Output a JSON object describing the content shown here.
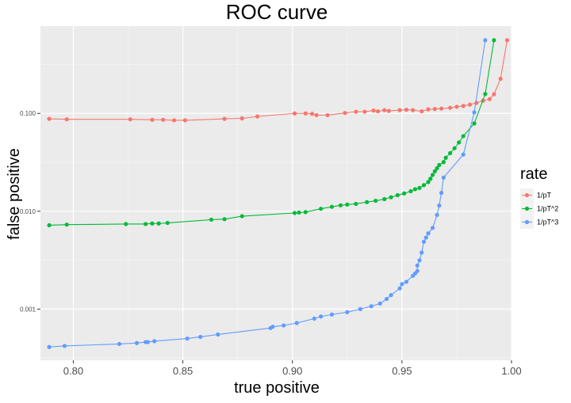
{
  "chart_data": {
    "type": "line",
    "title": "ROC curve",
    "xlabel": "true positive",
    "ylabel": "false positive",
    "x_scale": "linear",
    "y_scale": "log10",
    "xlim": [
      0.785,
      1.0
    ],
    "ylim": [
      0.0003,
      0.78
    ],
    "x_ticks": [
      0.8,
      0.85,
      0.9,
      0.95,
      1.0
    ],
    "x_tick_labels": [
      "0.80",
      "0.85",
      "0.90",
      "0.95",
      "1.00"
    ],
    "y_ticks": [
      0.001,
      0.01,
      0.1
    ],
    "y_tick_labels": [
      "0.001",
      "0.010",
      "0.100"
    ],
    "grid": true,
    "legend": {
      "title": "rate",
      "position": "right"
    },
    "series": [
      {
        "name": "1/pT",
        "color": "#F8766D",
        "points": [
          [
            0.789,
            0.088
          ],
          [
            0.797,
            0.087
          ],
          [
            0.826,
            0.087
          ],
          [
            0.836,
            0.086
          ],
          [
            0.841,
            0.086
          ],
          [
            0.846,
            0.085
          ],
          [
            0.851,
            0.085
          ],
          [
            0.869,
            0.088
          ],
          [
            0.877,
            0.089
          ],
          [
            0.884,
            0.093
          ],
          [
            0.901,
            0.1
          ],
          [
            0.906,
            0.1
          ],
          [
            0.909,
            0.099
          ],
          [
            0.911,
            0.096
          ],
          [
            0.916,
            0.096
          ],
          [
            0.924,
            0.101
          ],
          [
            0.929,
            0.104
          ],
          [
            0.933,
            0.104
          ],
          [
            0.937,
            0.107
          ],
          [
            0.939,
            0.105
          ],
          [
            0.942,
            0.108
          ],
          [
            0.944,
            0.106
          ],
          [
            0.949,
            0.108
          ],
          [
            0.952,
            0.109
          ],
          [
            0.955,
            0.108
          ],
          [
            0.959,
            0.105
          ],
          [
            0.962,
            0.11
          ],
          [
            0.965,
            0.111
          ],
          [
            0.968,
            0.112
          ],
          [
            0.972,
            0.114
          ],
          [
            0.975,
            0.117
          ],
          [
            0.978,
            0.119
          ],
          [
            0.981,
            0.123
          ],
          [
            0.984,
            0.128
          ],
          [
            0.987,
            0.135
          ],
          [
            0.99,
            0.14
          ],
          [
            0.992,
            0.157
          ],
          [
            0.995,
            0.226
          ],
          [
            0.998,
            0.56
          ]
        ]
      },
      {
        "name": "1/pT^2",
        "color": "#00BA38",
        "points": [
          [
            0.789,
            0.0072
          ],
          [
            0.797,
            0.0073
          ],
          [
            0.824,
            0.0074
          ],
          [
            0.833,
            0.0074
          ],
          [
            0.836,
            0.0075
          ],
          [
            0.839,
            0.0075
          ],
          [
            0.843,
            0.0076
          ],
          [
            0.863,
            0.0082
          ],
          [
            0.869,
            0.0083
          ],
          [
            0.877,
            0.0089
          ],
          [
            0.901,
            0.0096
          ],
          [
            0.903,
            0.0097
          ],
          [
            0.906,
            0.0098
          ],
          [
            0.913,
            0.0106
          ],
          [
            0.918,
            0.0111
          ],
          [
            0.922,
            0.0115
          ],
          [
            0.925,
            0.0117
          ],
          [
            0.929,
            0.0119
          ],
          [
            0.934,
            0.0124
          ],
          [
            0.938,
            0.0128
          ],
          [
            0.942,
            0.0133
          ],
          [
            0.945,
            0.0139
          ],
          [
            0.948,
            0.0146
          ],
          [
            0.951,
            0.0152
          ],
          [
            0.954,
            0.016
          ],
          [
            0.956,
            0.0168
          ],
          [
            0.958,
            0.0173
          ],
          [
            0.96,
            0.0185
          ],
          [
            0.962,
            0.0199
          ],
          [
            0.963,
            0.0215
          ],
          [
            0.964,
            0.0235
          ],
          [
            0.965,
            0.0256
          ],
          [
            0.966,
            0.0275
          ],
          [
            0.967,
            0.0297
          ],
          [
            0.969,
            0.0318
          ],
          [
            0.97,
            0.0352
          ],
          [
            0.972,
            0.0393
          ],
          [
            0.974,
            0.0441
          ],
          [
            0.976,
            0.0505
          ],
          [
            0.978,
            0.0586
          ],
          [
            0.983,
            0.079
          ],
          [
            0.988,
            0.158
          ],
          [
            0.992,
            0.56
          ]
        ]
      },
      {
        "name": "1/pT^3",
        "color": "#619CFF",
        "points": [
          [
            0.789,
            0.00041
          ],
          [
            0.796,
            0.00042
          ],
          [
            0.821,
            0.00044
          ],
          [
            0.829,
            0.00045
          ],
          [
            0.833,
            0.00046
          ],
          [
            0.834,
            0.00046
          ],
          [
            0.837,
            0.00047
          ],
          [
            0.852,
            0.0005
          ],
          [
            0.858,
            0.00052
          ],
          [
            0.866,
            0.00055
          ],
          [
            0.89,
            0.00064
          ],
          [
            0.891,
            0.00066
          ],
          [
            0.896,
            0.00068
          ],
          [
            0.902,
            0.00072
          ],
          [
            0.91,
            0.0008
          ],
          [
            0.913,
            0.00084
          ],
          [
            0.918,
            0.00088
          ],
          [
            0.925,
            0.00093
          ],
          [
            0.931,
            0.001
          ],
          [
            0.936,
            0.00107
          ],
          [
            0.94,
            0.00114
          ],
          [
            0.943,
            0.00127
          ],
          [
            0.945,
            0.00139
          ],
          [
            0.949,
            0.00163
          ],
          [
            0.95,
            0.0018
          ],
          [
            0.952,
            0.0019
          ],
          [
            0.955,
            0.00219
          ],
          [
            0.956,
            0.00231
          ],
          [
            0.957,
            0.00245
          ],
          [
            0.957,
            0.00279
          ],
          [
            0.958,
            0.00315
          ],
          [
            0.959,
            0.00378
          ],
          [
            0.96,
            0.00488
          ],
          [
            0.961,
            0.00538
          ],
          [
            0.962,
            0.00594
          ],
          [
            0.964,
            0.00676
          ],
          [
            0.966,
            0.00916
          ],
          [
            0.967,
            0.01143
          ],
          [
            0.968,
            0.0154
          ],
          [
            0.969,
            0.02209
          ],
          [
            0.978,
            0.03802
          ],
          [
            0.983,
            0.1025
          ],
          [
            0.988,
            0.56
          ]
        ]
      }
    ]
  }
}
